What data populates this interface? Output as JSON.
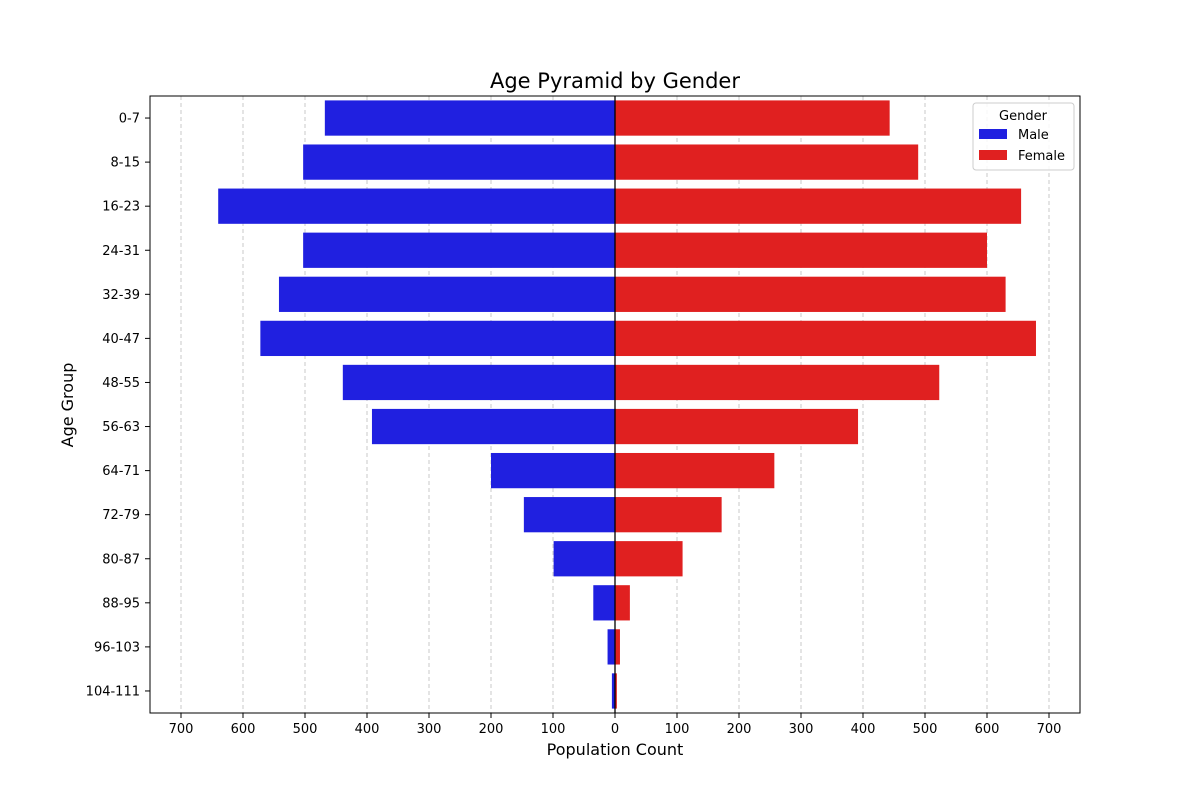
{
  "chart_data": {
    "type": "bar",
    "orientation": "horizontal-pyramid",
    "title": "Age Pyramid by Gender",
    "xlabel": "Population Count",
    "ylabel": "Age Group",
    "xlim": [
      -750,
      750
    ],
    "x_ticks": [
      -700,
      -600,
      -500,
      -400,
      -300,
      -200,
      -100,
      0,
      100,
      200,
      300,
      400,
      500,
      600,
      700
    ],
    "x_tick_labels": [
      "700",
      "600",
      "500",
      "400",
      "300",
      "200",
      "100",
      "0",
      "100",
      "200",
      "300",
      "400",
      "500",
      "600",
      "700"
    ],
    "grid": "x-axis dashed",
    "categories": [
      "0-7",
      "8-15",
      "16-23",
      "24-31",
      "32-39",
      "40-47",
      "48-55",
      "56-63",
      "64-71",
      "72-79",
      "80-87",
      "88-95",
      "96-103",
      "104-111"
    ],
    "series": [
      {
        "name": "Male",
        "color": "#2020e0",
        "side": "left",
        "values": [
          468,
          503,
          640,
          503,
          542,
          572,
          439,
          392,
          200,
          147,
          99,
          35,
          12,
          5
        ]
      },
      {
        "name": "Female",
        "color": "#e02020",
        "side": "right",
        "values": [
          443,
          489,
          655,
          600,
          630,
          679,
          523,
          392,
          257,
          172,
          109,
          24,
          8,
          3
        ]
      }
    ],
    "legend": {
      "title": "Gender",
      "placement": "top-right"
    }
  }
}
